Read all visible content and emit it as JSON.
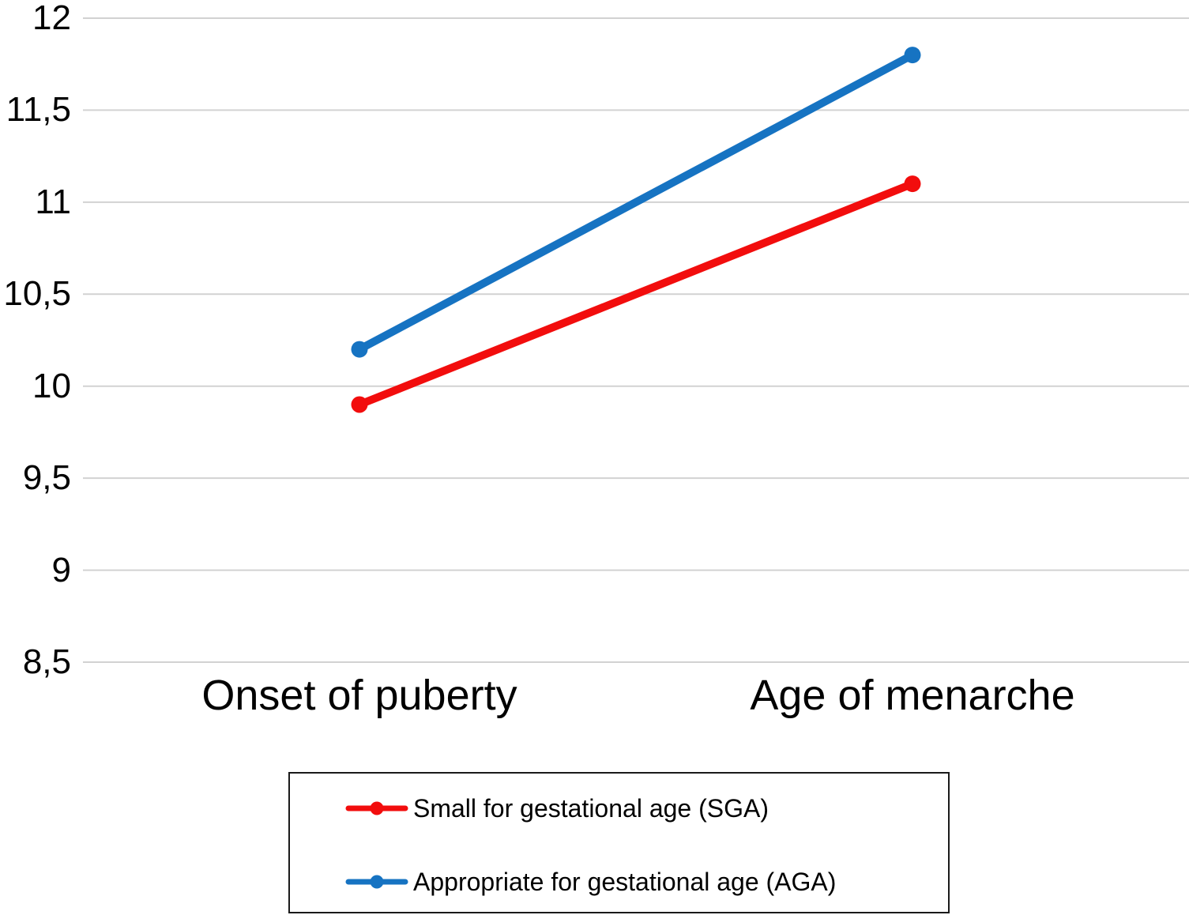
{
  "chart_data": {
    "type": "line",
    "categories": [
      "Onset of puberty",
      "Age of menarche"
    ],
    "series": [
      {
        "name": "Small for gestational age (SGA)",
        "values": [
          9.9,
          11.1
        ],
        "color": "#f20d0d"
      },
      {
        "name": "Appropriate for gestational age (AGA)",
        "values": [
          10.2,
          11.8
        ],
        "color": "#1673c2"
      }
    ],
    "title": "",
    "xlabel": "",
    "ylabel": "",
    "ylim": [
      8.5,
      12
    ],
    "ytick_step": 0.5,
    "ytick_labels": [
      "8,5",
      "9",
      "9,5",
      "10",
      "10,5",
      "11",
      "11,5",
      "12"
    ],
    "decimal_separator": ",",
    "grid": "horizontal",
    "gridline_color": "#d2d2d2",
    "background_color": "#ffffff",
    "text_color": "#000000",
    "legend_position": "bottom-box",
    "legend_border_color": "#1a1a1a"
  }
}
